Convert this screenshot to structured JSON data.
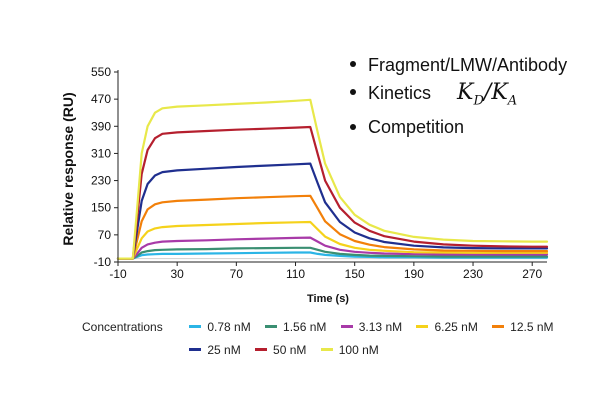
{
  "bullets": [
    "Fragment/LMW/Antibody",
    "Kinetics",
    "Competition"
  ],
  "formula": {
    "k1": "K",
    "s1": "D",
    "slash": "/",
    "k2": "K",
    "s2": "A"
  },
  "legend_title": "Concentrations",
  "chart_data": {
    "type": "line",
    "title": "",
    "xlabel": "Time (s)",
    "ylabel": "Relative response (RU)",
    "xlim": [
      -10,
      280
    ],
    "ylim": [
      -10,
      550
    ],
    "xticks": [
      -10,
      30,
      70,
      110,
      150,
      190,
      230,
      270
    ],
    "yticks": [
      -10,
      70,
      150,
      230,
      310,
      390,
      470,
      550
    ],
    "x": [
      -10,
      0,
      3,
      6,
      10,
      15,
      20,
      30,
      50,
      70,
      90,
      110,
      120,
      125,
      130,
      140,
      150,
      160,
      170,
      190,
      210,
      230,
      250,
      270,
      280
    ],
    "series": [
      {
        "name": "0.78 nM",
        "color": "#2bb5e6",
        "values": [
          0,
          0,
          5,
          10,
          12,
          13,
          14,
          14,
          15,
          16,
          17,
          18,
          18,
          14,
          11,
          8,
          6,
          5,
          4,
          4,
          3,
          3,
          3,
          3,
          3
        ]
      },
      {
        "name": "1.56 nM",
        "color": "#3a8f72",
        "values": [
          0,
          0,
          8,
          18,
          22,
          25,
          26,
          27,
          28,
          30,
          31,
          32,
          32,
          26,
          20,
          14,
          11,
          9,
          8,
          7,
          6,
          6,
          6,
          6,
          6
        ]
      },
      {
        "name": "3.13 nM",
        "color": "#a83aa8",
        "values": [
          0,
          0,
          15,
          32,
          42,
          47,
          50,
          52,
          54,
          57,
          59,
          61,
          62,
          50,
          38,
          26,
          20,
          17,
          15,
          13,
          12,
          12,
          12,
          12,
          12
        ]
      },
      {
        "name": "6.25 nM",
        "color": "#f5d21b",
        "values": [
          0,
          0,
          30,
          60,
          80,
          89,
          93,
          96,
          99,
          102,
          105,
          107,
          108,
          86,
          65,
          43,
          32,
          26,
          23,
          19,
          18,
          17,
          17,
          17,
          17
        ]
      },
      {
        "name": "12.5 nM",
        "color": "#f2800a",
        "values": [
          0,
          0,
          55,
          110,
          145,
          160,
          166,
          170,
          174,
          178,
          181,
          184,
          185,
          148,
          110,
          72,
          52,
          41,
          34,
          27,
          24,
          23,
          22,
          22,
          22
        ]
      },
      {
        "name": "25 nM",
        "color": "#1f2f8f",
        "values": [
          0,
          0,
          85,
          170,
          220,
          245,
          255,
          260,
          265,
          270,
          274,
          278,
          280,
          222,
          166,
          108,
          77,
          60,
          49,
          38,
          33,
          31,
          30,
          30,
          30
        ]
      },
      {
        "name": "50 nM",
        "color": "#b51f2e",
        "values": [
          0,
          0,
          120,
          250,
          320,
          355,
          368,
          372,
          376,
          380,
          383,
          386,
          388,
          308,
          230,
          150,
          106,
          82,
          66,
          50,
          42,
          38,
          36,
          35,
          35
        ]
      },
      {
        "name": "100 nM",
        "color": "#e8e84a",
        "values": [
          0,
          0,
          150,
          310,
          390,
          430,
          443,
          448,
          452,
          456,
          460,
          465,
          468,
          372,
          280,
          182,
          129,
          100,
          82,
          64,
          56,
          52,
          51,
          50,
          50
        ]
      }
    ]
  }
}
